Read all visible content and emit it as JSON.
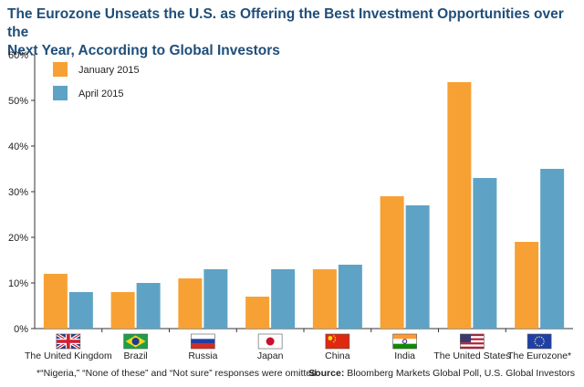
{
  "title_line1": "The Eurozone Unseats the U.S. as Offering the Best Investment Opportunities over the",
  "title_line2": "Next Year, According to Global Investors",
  "footnote": "*“Nigeria,” “None of these” and “Not sure” responses were omitted.",
  "source_label": "Source:",
  "source_text": " Bloomberg Markets Global Poll, U.S. Global Investors",
  "colors": {
    "january": "#f7a134",
    "april": "#5ea3c5",
    "title": "#1f4e79"
  },
  "chart_data": {
    "type": "bar",
    "categories": [
      "The United Kingdom",
      "Brazil",
      "Russia",
      "Japan",
      "China",
      "India",
      "The United States",
      "The Eurozone*"
    ],
    "flags": [
      "uk-flag-icon",
      "brazil-flag-icon",
      "russia-flag-icon",
      "japan-flag-icon",
      "china-flag-icon",
      "india-flag-icon",
      "us-flag-icon",
      "eu-flag-icon"
    ],
    "series": [
      {
        "name": "January 2015",
        "values": [
          12,
          8,
          11,
          7,
          13,
          29,
          54,
          19
        ]
      },
      {
        "name": "April 2015",
        "values": [
          8,
          10,
          13,
          13,
          14,
          27,
          33,
          35
        ]
      }
    ],
    "ylim": [
      0,
      60
    ],
    "yticks": [
      0,
      10,
      20,
      30,
      40,
      50,
      60
    ],
    "ytick_labels": [
      "0%",
      "10%",
      "20%",
      "30%",
      "40%",
      "50%",
      "60%"
    ],
    "legend_position": "top-left",
    "grid": false
  }
}
